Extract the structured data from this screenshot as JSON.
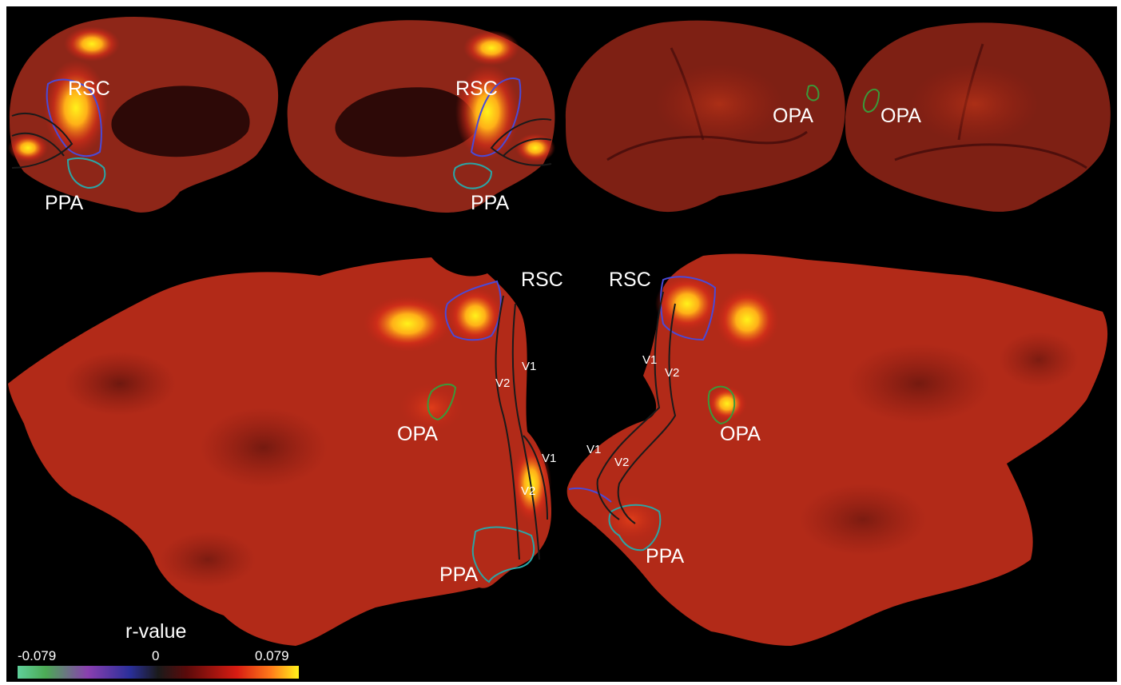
{
  "labels": {
    "rsc": "RSC",
    "ppa": "PPA",
    "opa": "OPA",
    "v1": "V1",
    "v2": "V2"
  },
  "colorbar": {
    "title": "r-value",
    "min": "-0.079",
    "mid": "0",
    "max": "0.079",
    "colors": [
      "#5fcf9a",
      "#4caa55",
      "#8a3fb0",
      "#2a2f9a",
      "#1a1a1a",
      "#5a0a0a",
      "#d81c12",
      "#ff7a1a",
      "#fff21a"
    ]
  },
  "outline_colors": {
    "rsc": "#4a4ad8",
    "ppa": "#2aa6a6",
    "opa": "#3a9a3a",
    "visual": "#1a1a1a"
  }
}
